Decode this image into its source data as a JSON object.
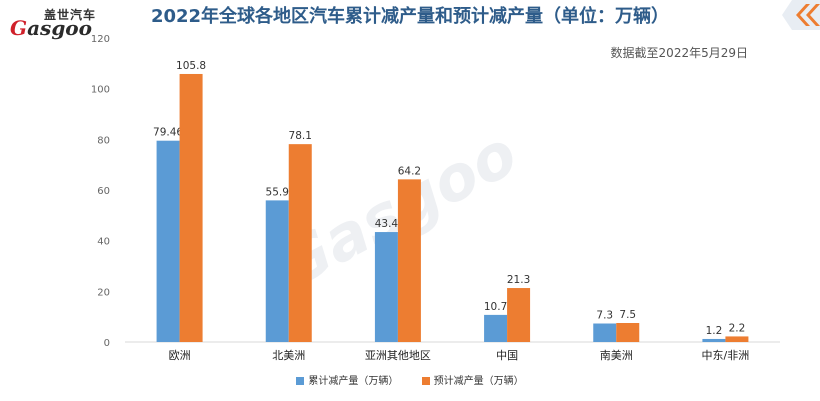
{
  "logo": {
    "cn": "盖世汽车",
    "en_prefix": "G",
    "en_rest": "asgoo"
  },
  "title": "2022年全球各地区汽车累计减产量和预计减产量（单位：万辆）",
  "note": "数据截至2022年5月29日",
  "colors": {
    "series1": "#5b9bd5",
    "series2": "#ed7d31",
    "title": "#2e5c8a",
    "accent": "#d0202a"
  },
  "chart_data": {
    "type": "bar",
    "title": "2022年全球各地区汽车累计减产量和预计减产量（单位：万辆）",
    "categories": [
      "欧洲",
      "北美洲",
      "亚洲其他地区",
      "中国",
      "南美洲",
      "中东/非洲"
    ],
    "series": [
      {
        "name": "累计减产量（万辆）",
        "values": [
          79.46,
          55.9,
          43.4,
          10.7,
          7.3,
          1.2
        ],
        "labels": [
          "79.46",
          "55.9",
          "43.4",
          "10.7",
          "7.3",
          "1.2"
        ]
      },
      {
        "name": "预计减产量（万辆）",
        "values": [
          105.8,
          78.1,
          64.2,
          21.3,
          7.5,
          2.2
        ],
        "labels": [
          "105.8",
          "78.1",
          "64.2",
          "21.3",
          "7.5",
          "2.2"
        ]
      }
    ],
    "yticks": [
      0,
      20,
      40,
      60,
      80,
      100,
      120
    ],
    "ylim": [
      0,
      120
    ],
    "grid": false,
    "legend_position": "bottom"
  }
}
